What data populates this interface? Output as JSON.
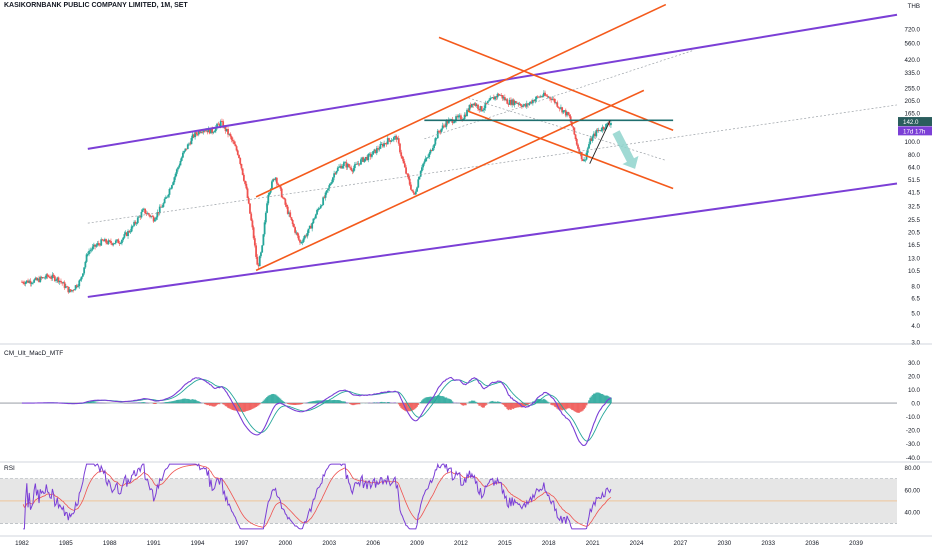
{
  "title": "KASIKORNBANK PUBLIC COMPANY LIMITED, 1M, SET",
  "currency": "THB",
  "price_tags": {
    "last": "142.0",
    "countdown": "17d 17h"
  },
  "colors": {
    "up": "#26a69a",
    "down": "#ef5350",
    "channel_orange": "#f45a1c",
    "purple_trend": "#7b3fd6",
    "horizontal": "#1f6f6f",
    "arrow": "#8fd3cc",
    "macd_line": "#7b3fd6",
    "signal_line": "#26a69a",
    "rsi_line": "#7b3fd6",
    "rsi_ma": "#ef5350",
    "rsi_band": "#e6e6e6"
  },
  "x_axis": {
    "labels": [
      "1982",
      "1985",
      "1988",
      "1991",
      "1994",
      "1997",
      "2000",
      "2003",
      "2006",
      "2009",
      "2012",
      "2015",
      "2018",
      "2021",
      "2024",
      "2027",
      "2030",
      "2033",
      "2036",
      "2039"
    ]
  },
  "panes": {
    "macd_label": "CM_Ult_MacD_MTF",
    "rsi_label": "RSI"
  },
  "chart_data": [
    {
      "type": "candlestick",
      "title": "KASIKORNBANK PUBLIC COMPANY LIMITED, 1M, SET",
      "scale": "log",
      "ylim": [
        3.0,
        1000
      ],
      "ticks": [
        "720.0",
        "560.0",
        "420.0",
        "335.0",
        "255.0",
        "205.0",
        "165.0",
        "142.0",
        "100.0",
        "80.0",
        "64.0",
        "51.5",
        "41.5",
        "32.5",
        "25.5",
        "20.5",
        "16.5",
        "13.0",
        "10.5",
        "8.0",
        "6.5",
        "5.0",
        "4.0",
        "3.0"
      ],
      "x_range": [
        1980.5,
        2041.8
      ],
      "series": [
        {
          "x": [
            1982.0,
            1983.0,
            1983.8,
            1984.5,
            1985.3,
            1986.0,
            1986.5,
            1987.0,
            1987.5,
            1988.0,
            1988.7,
            1989.5,
            1990.3,
            1991.0,
            1991.7,
            1992.3,
            1993.0,
            1993.7,
            1994.3,
            1995.0,
            1995.6,
            1996.2,
            1996.8,
            1997.3,
            1997.8,
            1998.1,
            1998.4,
            1998.8,
            1999.3,
            1999.8,
            2000.4,
            2001.0,
            2001.6,
            2002.2,
            2002.8,
            2003.4,
            2004.0,
            2004.6,
            2005.2,
            2005.8,
            2006.4,
            2007.0,
            2007.6,
            2008.2,
            2008.8,
            2009.3,
            2009.8,
            2010.4,
            2011.0,
            2011.6,
            2012.2,
            2012.8,
            2013.4,
            2014.0,
            2014.6,
            2015.2,
            2015.8,
            2016.4,
            2017.0,
            2017.6,
            2018.2,
            2018.8,
            2019.4,
            2020.0,
            2020.4,
            2020.8,
            2021.3,
            2021.8,
            2022.3
          ],
          "close": [
            8.6,
            8.8,
            9.5,
            9.0,
            7.2,
            8.8,
            14.5,
            16.0,
            17.5,
            17.0,
            17.5,
            22.0,
            30.0,
            26.0,
            34.0,
            50.0,
            80.0,
            110.0,
            125.0,
            120.0,
            140.0,
            110.0,
            80.0,
            45.0,
            20.0,
            11.0,
            15.0,
            40.0,
            55.0,
            38.0,
            25.0,
            17.0,
            21.0,
            30.0,
            40.0,
            60.0,
            68.0,
            62.0,
            72.0,
            78.0,
            90.0,
            102.0,
            108.0,
            60.0,
            38.0,
            65.0,
            78.0,
            115.0,
            140.0,
            148.0,
            155.0,
            200.0,
            175.0,
            205.0,
            230.0,
            200.0,
            200.0,
            185.0,
            210.0,
            225.0,
            215.0,
            180.0,
            155.0,
            90.0,
            70.0,
            100.0,
            120.0,
            130.0,
            142.0
          ]
        }
      ],
      "trendlines": [
        {
          "name": "purple-channel-top",
          "points": [
            [
              1986.5,
              88
            ],
            [
              2041.8,
              920
            ]
          ]
        },
        {
          "name": "purple-channel-bottom",
          "points": [
            [
              1986.5,
              6.6
            ],
            [
              2041.8,
              48
            ]
          ]
        },
        {
          "name": "orange-uptrend-upper",
          "points": [
            [
              1998.0,
              38
            ],
            [
              2026.0,
              1100
            ]
          ]
        },
        {
          "name": "orange-uptrend-lower",
          "points": [
            [
              1998.0,
              10.5
            ],
            [
              2024.5,
              245
            ]
          ]
        },
        {
          "name": "orange-downtrend-upper",
          "points": [
            [
              2010.5,
              620
            ],
            [
              2026.5,
              122
            ]
          ]
        },
        {
          "name": "orange-downtrend-lower",
          "points": [
            [
              2012.5,
              170
            ],
            [
              2026.5,
              44
            ]
          ]
        },
        {
          "name": "horizontal-resistance",
          "points": [
            [
              2009.5,
              145
            ],
            [
              2026.5,
              145
            ]
          ]
        }
      ]
    },
    {
      "type": "line",
      "title": "CM_Ult_MacD_MTF",
      "ylim": [
        -42,
        34
      ],
      "ticks": [
        "30.0",
        "20.0",
        "10.0",
        "0.0",
        "-10.0",
        "-20.0",
        "-30.0",
        "-40.0"
      ]
    },
    {
      "type": "line",
      "title": "RSI",
      "ylim": [
        24,
        84
      ],
      "ticks": [
        "80.00",
        "60.00",
        "40.00"
      ]
    }
  ]
}
